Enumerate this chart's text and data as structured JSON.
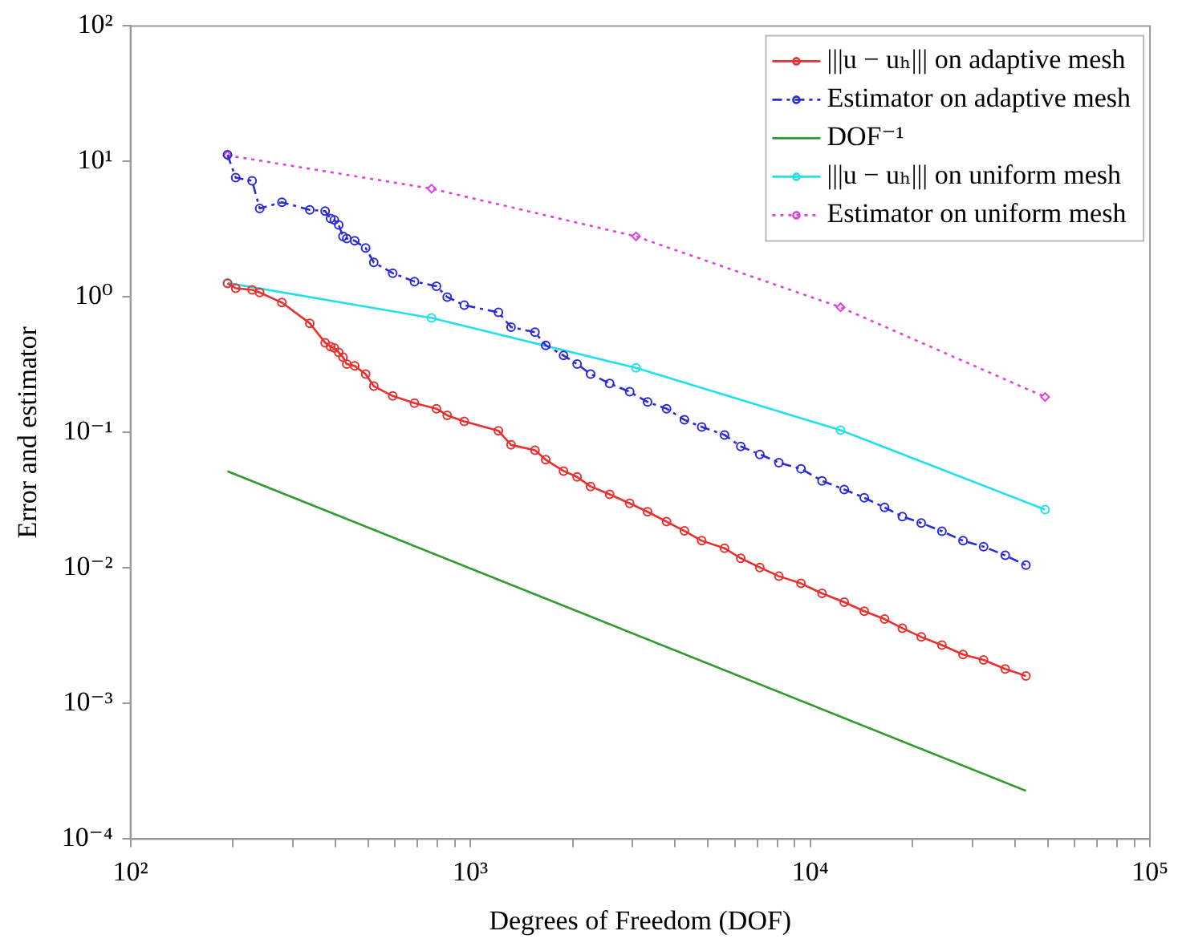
{
  "chart_data": {
    "type": "line",
    "xlabel": "Degrees of Freedom (DOF)",
    "ylabel": "Error and estimator",
    "log": "xy",
    "grid": false,
    "legend": "top right",
    "xlim": [
      100,
      100000
    ],
    "ylim": [
      0.0001,
      100
    ],
    "xticks": [
      {
        "value": 100,
        "label": "10²"
      },
      {
        "value": 200,
        "label": null
      },
      {
        "value": 300,
        "label": null
      },
      {
        "value": 400,
        "label": null
      },
      {
        "value": 500,
        "label": null
      },
      {
        "value": 600,
        "label": null
      },
      {
        "value": 700,
        "label": null
      },
      {
        "value": 800,
        "label": null
      },
      {
        "value": 900,
        "label": null
      },
      {
        "value": 1000,
        "label": "10³"
      },
      {
        "value": 2000,
        "label": null
      },
      {
        "value": 3000,
        "label": null
      },
      {
        "value": 4000,
        "label": null
      },
      {
        "value": 5000,
        "label": null
      },
      {
        "value": 6000,
        "label": null
      },
      {
        "value": 7000,
        "label": null
      },
      {
        "value": 8000,
        "label": null
      },
      {
        "value": 9000,
        "label": null
      },
      {
        "value": 10000,
        "label": "10⁴"
      },
      {
        "value": 20000,
        "label": null
      },
      {
        "value": 30000,
        "label": null
      },
      {
        "value": 40000,
        "label": null
      },
      {
        "value": 50000,
        "label": null
      },
      {
        "value": 60000,
        "label": null
      },
      {
        "value": 70000,
        "label": null
      },
      {
        "value": 80000,
        "label": null
      },
      {
        "value": 90000,
        "label": null
      },
      {
        "value": 100000,
        "label": "10⁵"
      }
    ],
    "yticks": [
      {
        "value": 0.0001,
        "label": "10⁻⁴"
      },
      {
        "value": 0.001,
        "label": "10⁻³"
      },
      {
        "value": 0.01,
        "label": "10⁻²"
      },
      {
        "value": 0.1,
        "label": "10⁻¹"
      },
      {
        "value": 1,
        "label": "10⁰"
      },
      {
        "value": 10,
        "label": "10¹"
      },
      {
        "value": 100,
        "label": "10²"
      }
    ],
    "series": [
      {
        "name": "|||u − uₕ||| on adaptive mesh",
        "color": "#e8302e",
        "marker": "circle",
        "line_style": "solid",
        "x": [
          193,
          204,
          228,
          240,
          279,
          337,
          374,
          388,
          398,
          410,
          422,
          433,
          457,
          492,
          520,
          591,
          685,
          795,
          855,
          960,
          1210,
          1318,
          1550,
          1667,
          1881,
          2062,
          2259,
          2571,
          2944,
          3324,
          3780,
          4266,
          4797,
          5598,
          6250,
          7111,
          8091,
          9400,
          10840,
          12600,
          14430,
          16560,
          18680,
          21230,
          24420,
          28180,
          32380,
          37500,
          43150
        ],
        "values": [
          1.26,
          1.16,
          1.13,
          1.08,
          0.91,
          0.64,
          0.46,
          0.43,
          0.42,
          0.39,
          0.36,
          0.32,
          0.31,
          0.27,
          0.22,
          0.186,
          0.165,
          0.15,
          0.134,
          0.121,
          0.103,
          0.081,
          0.074,
          0.063,
          0.052,
          0.047,
          0.04,
          0.035,
          0.03,
          0.026,
          0.022,
          0.0188,
          0.0159,
          0.014,
          0.0118,
          0.0101,
          0.0087,
          0.0077,
          0.0065,
          0.0056,
          0.0048,
          0.0042,
          0.0036,
          0.0031,
          0.0027,
          0.0023,
          0.0021,
          0.0018,
          0.0016
        ]
      },
      {
        "name": "Estimator on adaptive mesh",
        "color": "#2a2ad8",
        "marker": "circle",
        "line_style": "dashed",
        "x": [
          193,
          204,
          228,
          240,
          279,
          337,
          374,
          388,
          398,
          410,
          422,
          433,
          457,
          492,
          520,
          591,
          685,
          795,
          855,
          960,
          1210,
          1318,
          1550,
          1667,
          1881,
          2062,
          2259,
          2571,
          2944,
          3324,
          3780,
          4266,
          4797,
          5598,
          6250,
          7111,
          8091,
          9400,
          10840,
          12600,
          14430,
          16560,
          18680,
          21230,
          24420,
          28180,
          32380,
          37500,
          43150
        ],
        "values": [
          11.2,
          7.6,
          7.2,
          4.5,
          5.0,
          4.4,
          4.3,
          3.8,
          3.7,
          3.4,
          2.8,
          2.7,
          2.6,
          2.3,
          1.8,
          1.5,
          1.3,
          1.2,
          1.0,
          0.87,
          0.77,
          0.6,
          0.55,
          0.44,
          0.37,
          0.32,
          0.27,
          0.23,
          0.2,
          0.168,
          0.15,
          0.124,
          0.11,
          0.096,
          0.079,
          0.069,
          0.06,
          0.054,
          0.044,
          0.038,
          0.033,
          0.028,
          0.024,
          0.0215,
          0.0187,
          0.0159,
          0.0144,
          0.0124,
          0.0105
        ]
      },
      {
        "name": "DOF⁻¹",
        "color": "#2e9a2e",
        "marker": "none",
        "line_style": "solid",
        "x": [
          193,
          43150
        ],
        "values": [
          0.0518,
          0.000227
        ]
      },
      {
        "name": "|||u − uₕ||| on uniform mesh",
        "color": "#22e0ea",
        "marker": "circle",
        "line_style": "solid",
        "x": [
          193,
          769,
          3073,
          12289,
          49153
        ],
        "values": [
          1.27,
          0.7,
          0.3,
          0.104,
          0.027
        ]
      },
      {
        "name": "Estimator on uniform mesh",
        "color": "#e040e0",
        "marker": "diamond",
        "line_style": "dotted",
        "x": [
          193,
          769,
          3073,
          12289,
          49153
        ],
        "values": [
          11.1,
          6.3,
          2.8,
          0.84,
          0.183
        ]
      }
    ]
  }
}
